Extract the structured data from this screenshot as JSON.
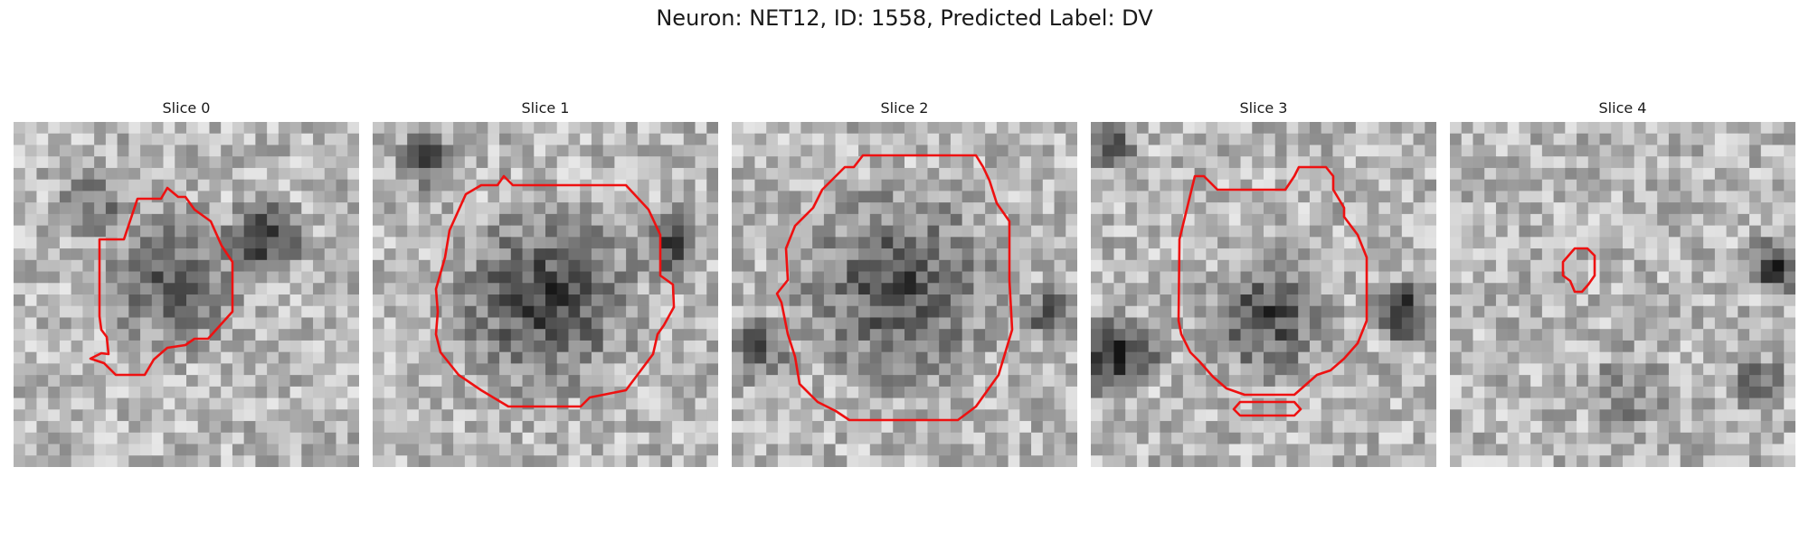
{
  "figure": {
    "title": "Neuron: NET12, ID: 1558, Predicted Label: DV"
  },
  "colors": {
    "contour": "#ee1111",
    "image_colormap": "grayscale"
  },
  "panels": [
    {
      "title": "Slice 0"
    },
    {
      "title": "Slice 1"
    },
    {
      "title": "Slice 2"
    },
    {
      "title": "Slice 3"
    },
    {
      "title": "Slice 4"
    }
  ]
}
